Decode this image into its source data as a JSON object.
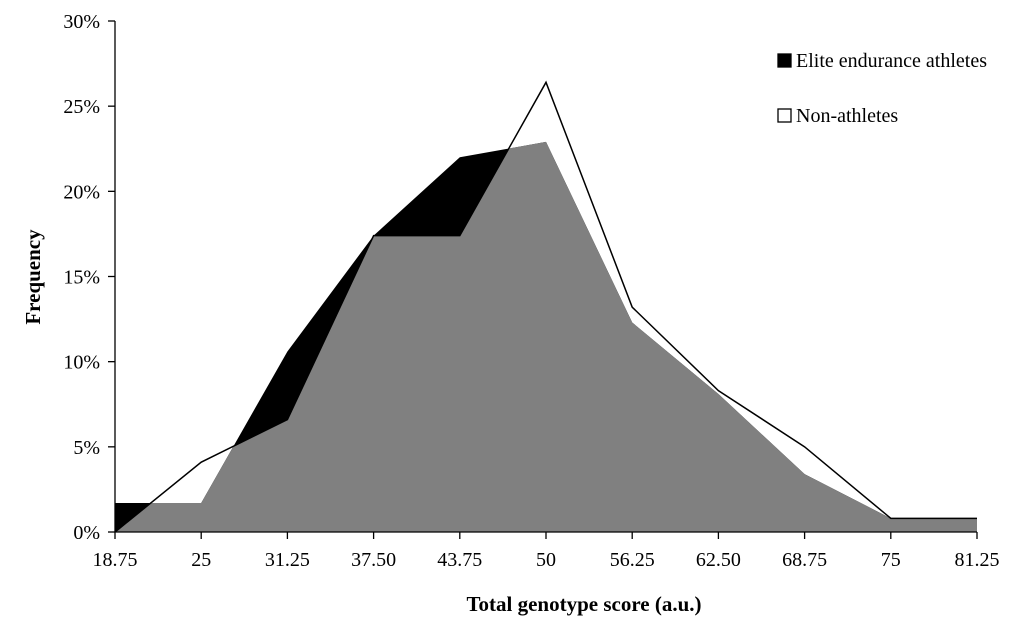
{
  "chart_data": {
    "type": "area",
    "xlabel": "Total genotype score (a.u.)",
    "ylabel": "Frequency",
    "categories": [
      "18.75",
      "25",
      "31.25",
      "37.50",
      "43.75",
      "50",
      "56.25",
      "62.50",
      "68.75",
      "75",
      "81.25"
    ],
    "y_ticks": [
      "0%",
      "5%",
      "10%",
      "15%",
      "20%",
      "25%",
      "30%"
    ],
    "ylim": [
      0,
      30
    ],
    "grid": false,
    "legend_position": "top-right",
    "series": [
      {
        "name": "Elite endurance athletes",
        "style": "filled",
        "values": [
          1.7,
          1.7,
          10.6,
          17.4,
          22.0,
          22.9,
          12.3,
          8.1,
          3.4,
          0.8,
          0.8
        ],
        "first_point_jump_from_zero": true
      },
      {
        "name": "Non-athletes",
        "style": "outline",
        "values": [
          0.0,
          4.1,
          6.6,
          17.4,
          17.4,
          26.4,
          13.2,
          8.3,
          5.0,
          0.8,
          0.8
        ]
      }
    ],
    "colors": {
      "athletes_excess": "#000000",
      "overlap": "#808080",
      "non_athletes_line": "#000000",
      "axis": "#000000"
    }
  }
}
